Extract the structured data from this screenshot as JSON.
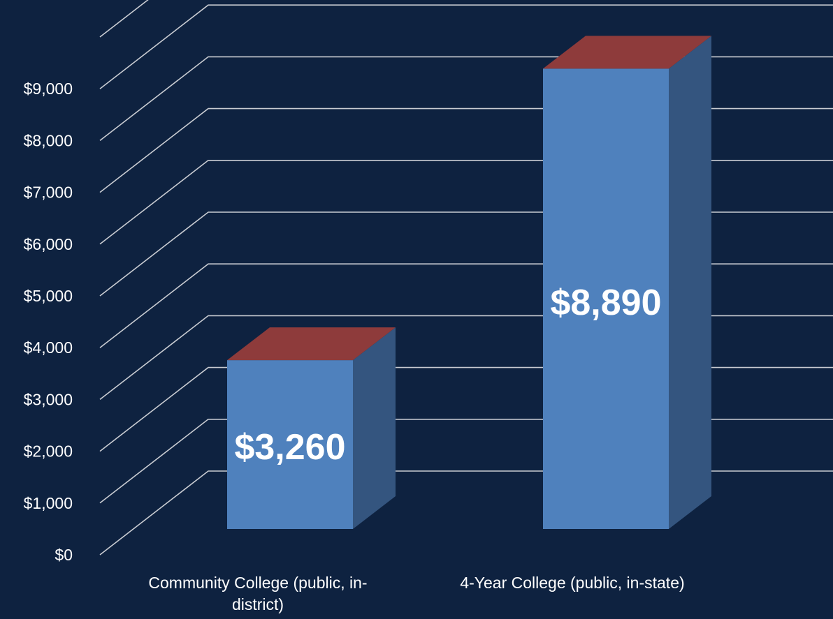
{
  "chart_data": {
    "type": "bar",
    "style": "3d-column",
    "categories": [
      "Community College (public, in-district)",
      "4-Year College (public, in-state)"
    ],
    "category_label_lines": [
      [
        "Community College (public, in-",
        "district)"
      ],
      [
        "4-Year College (public, in-state)"
      ]
    ],
    "values": [
      3260,
      8890
    ],
    "data_labels": [
      "$3,260",
      "$8,890"
    ],
    "ylim": [
      0,
      10000
    ],
    "ytick_values": [
      0,
      1000,
      2000,
      3000,
      4000,
      5000,
      6000,
      7000,
      8000,
      9000
    ],
    "ytick_labels": [
      "$0",
      "$1,000",
      "$2,000",
      "$3,000",
      "$4,000",
      "$5,000",
      "$6,000",
      "$7,000",
      "$8,000",
      "$9,000"
    ],
    "grid": true,
    "legend": "none",
    "title": "",
    "xlabel": "",
    "ylabel": ""
  },
  "colors": {
    "background": "#0e2240",
    "grid": "#c9ccd2",
    "bar_front": "#4f81bd",
    "bar_side": "#34557f",
    "bar_top": "#8e3b3b",
    "text": "#ffffff"
  }
}
